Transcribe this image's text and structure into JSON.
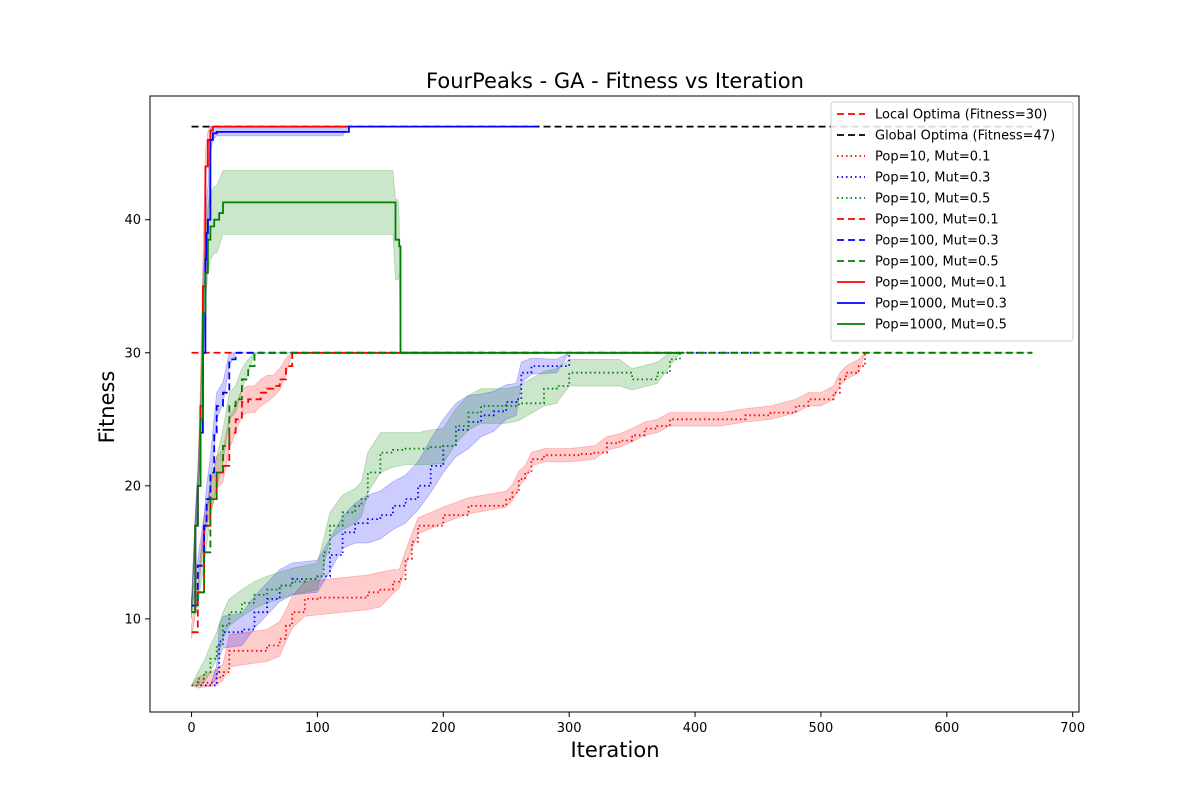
{
  "chart_data": {
    "type": "line",
    "title": "FourPeaks - GA - Fitness vs Iteration",
    "xlabel": "Iteration",
    "ylabel": "Fitness",
    "xlim": [
      -33,
      705
    ],
    "ylim": [
      3,
      49.3
    ],
    "xticks": [
      0,
      100,
      200,
      300,
      400,
      500,
      600,
      700
    ],
    "yticks": [
      10,
      20,
      30,
      40
    ],
    "grid": false,
    "legend_position": "top-right",
    "reference_lines": [
      {
        "name": "Local Optima (Fitness=30)",
        "y": 30,
        "x_range": [
          0,
          668
        ],
        "color": "#ff0000",
        "style": "dashed"
      },
      {
        "name": "Global Optima (Fitness=47)",
        "y": 47,
        "x_range": [
          0,
          668
        ],
        "color": "#000000",
        "style": "dashed"
      }
    ],
    "series": [
      {
        "name": "Pop=10, Mut=0.1",
        "color": "#ff0000",
        "style": "dotted",
        "x": [
          0,
          5,
          20,
          25,
          30,
          60,
          70,
          75,
          80,
          90,
          100,
          140,
          150,
          160,
          165,
          170,
          175,
          180,
          200,
          220,
          250,
          255,
          260,
          265,
          270,
          280,
          290,
          300,
          310,
          320,
          330,
          340,
          350,
          360,
          370,
          380,
          390,
          400,
          420,
          440,
          460,
          480,
          490,
          500,
          510,
          515,
          520,
          530,
          535
        ],
        "y": [
          5,
          5.2,
          5.6,
          6,
          7.6,
          8,
          8.5,
          9.5,
          10.5,
          11.5,
          11.6,
          12,
          12.2,
          12.8,
          13,
          14.5,
          15.8,
          17,
          17.8,
          18.5,
          19,
          19.5,
          20.5,
          21,
          22,
          22.3,
          22.3,
          22.3,
          22.4,
          22.5,
          23.2,
          23.4,
          23.8,
          24.3,
          24.5,
          25,
          25,
          25,
          25,
          25.3,
          25.5,
          26,
          26.5,
          26.5,
          27,
          28,
          28.5,
          29,
          30
        ],
        "band": [
          0,
          0.4,
          0.6,
          0.6,
          1.2,
          1.2,
          1.3,
          1.2,
          1.2,
          1.3,
          1.3,
          1.3,
          1.3,
          0.9,
          0.7,
          0.6,
          0.6,
          0.6,
          0.6,
          0.6,
          0.6,
          0.6,
          0.6,
          0.5,
          0.5,
          0.5,
          0.5,
          0.5,
          0.5,
          0.5,
          0.5,
          0.5,
          0.5,
          0.5,
          0.5,
          0.5,
          0.5,
          0.5,
          0.5,
          0.5,
          0.5,
          0.5,
          0.5,
          0.5,
          0.5,
          0.5,
          0.5,
          0.5,
          0
        ]
      },
      {
        "name": "Pop=10, Mut=0.3",
        "color": "#0000ff",
        "style": "dotted",
        "x": [
          0,
          15,
          20,
          22,
          25,
          40,
          50,
          60,
          70,
          80,
          100,
          110,
          120,
          130,
          140,
          150,
          160,
          170,
          180,
          190,
          200,
          210,
          220,
          230,
          240,
          250,
          258,
          262,
          270,
          290,
          300,
          310,
          330,
          350,
          380,
          400,
          420,
          450
        ],
        "y": [
          5,
          5,
          6,
          8.3,
          9,
          9.2,
          10.5,
          11.5,
          12.5,
          13,
          13.2,
          14.8,
          16.5,
          17.2,
          17.5,
          17.8,
          18.5,
          19,
          20,
          21.5,
          23,
          24.2,
          24.8,
          25.3,
          25.6,
          26.3,
          26.5,
          28.5,
          29,
          29,
          30,
          30,
          30,
          30,
          30,
          30,
          30,
          30
        ],
        "band": [
          0,
          0,
          0.5,
          1.2,
          1.2,
          1.2,
          1.2,
          1.2,
          1.2,
          1.2,
          1.2,
          1.2,
          1.2,
          1.5,
          1.8,
          1.8,
          1.8,
          1.8,
          1.8,
          2,
          2,
          2,
          2,
          1.6,
          1.5,
          1.3,
          1.2,
          0.8,
          0.6,
          0.5,
          0,
          0,
          0,
          0,
          0,
          0,
          0,
          0
        ]
      },
      {
        "name": "Pop=10, Mut=0.5",
        "color": "#008000",
        "style": "dotted",
        "x": [
          0,
          5,
          10,
          15,
          20,
          25,
          30,
          40,
          50,
          60,
          70,
          80,
          90,
          100,
          105,
          110,
          120,
          130,
          135,
          140,
          150,
          160,
          170,
          180,
          190,
          200,
          210,
          220,
          230,
          250,
          260,
          280,
          290,
          300,
          330,
          340,
          350,
          370,
          380,
          388,
          400
        ],
        "y": [
          5,
          5.5,
          6,
          7,
          8,
          9.5,
          10.5,
          11.2,
          11.8,
          12.2,
          12.5,
          12.8,
          13,
          13.2,
          15,
          17,
          18,
          18.5,
          19,
          21,
          22.5,
          22.7,
          22.8,
          22.8,
          22.9,
          23,
          24.5,
          25.5,
          26,
          26,
          26.2,
          27.3,
          27.5,
          28.5,
          28.5,
          28.5,
          28,
          28.5,
          29.5,
          30,
          30
        ],
        "band": [
          0,
          0.5,
          0.8,
          1,
          1,
          1,
          1,
          1,
          1,
          1,
          1,
          1,
          1,
          1,
          1,
          1,
          1.3,
          1.3,
          1.3,
          1.5,
          1.5,
          1.3,
          1.2,
          1.2,
          1.3,
          1.3,
          1.3,
          1.3,
          1.3,
          1.3,
          1.3,
          1.3,
          1.3,
          1,
          1,
          1,
          0.8,
          0.8,
          0.5,
          0,
          0
        ]
      },
      {
        "name": "Pop=100, Mut=0.1",
        "color": "#ff0000",
        "style": "dashed",
        "x": [
          0,
          5,
          10,
          15,
          20,
          25,
          30,
          35,
          40,
          45,
          50,
          55,
          60,
          65,
          70,
          75,
          80,
          150,
          225
        ],
        "y": [
          9,
          12,
          17,
          19,
          21,
          21.5,
          24,
          25,
          26.3,
          26.5,
          26.5,
          27,
          27.3,
          27.5,
          28,
          29,
          30,
          30,
          30
        ],
        "band": [
          0.5,
          0.5,
          0.7,
          1,
          1.2,
          1.2,
          1.2,
          1,
          1,
          1,
          1,
          1,
          1,
          0.8,
          0.8,
          0.6,
          0,
          0,
          0
        ]
      },
      {
        "name": "Pop=100, Mut=0.3",
        "color": "#0000ff",
        "style": "dashed",
        "x": [
          0,
          5,
          10,
          12,
          15,
          18,
          20,
          25,
          30,
          35,
          38,
          40,
          100,
          200,
          275
        ],
        "y": [
          11,
          14,
          17,
          19,
          21,
          24,
          26,
          27,
          29.5,
          30,
          30,
          30,
          30,
          30,
          30
        ],
        "band": [
          0.5,
          0.5,
          0.8,
          1,
          1.2,
          1.2,
          1,
          0.8,
          0.5,
          0,
          0,
          0,
          0,
          0,
          0
        ]
      },
      {
        "name": "Pop=100, Mut=0.5",
        "color": "#008000",
        "style": "dashed",
        "x": [
          0,
          5,
          10,
          15,
          20,
          25,
          30,
          35,
          40,
          45,
          50,
          100,
          200,
          300,
          400,
          500,
          600,
          668
        ],
        "y": [
          11,
          12,
          15,
          19,
          21,
          23,
          26,
          26.5,
          28,
          29,
          30,
          30,
          30,
          30,
          30,
          30,
          30,
          30
        ],
        "band": [
          0.5,
          0.8,
          1,
          1.2,
          1.2,
          1.2,
          1,
          1,
          0.8,
          0.5,
          0,
          0,
          0,
          0,
          0,
          0,
          0,
          0
        ]
      },
      {
        "name": "Pop=1000, Mut=0.1",
        "color": "#ff0000",
        "style": "solid",
        "x": [
          0,
          3,
          5,
          7,
          9,
          11,
          13,
          15,
          17,
          20,
          50,
          100,
          125
        ],
        "y": [
          10.5,
          17,
          20,
          26,
          35,
          44,
          46,
          46.7,
          47,
          47,
          47,
          47,
          47
        ],
        "band": [
          0.5,
          0.8,
          1,
          1.5,
          2,
          1.2,
          0.6,
          0.3,
          0,
          0,
          0,
          0,
          0
        ]
      },
      {
        "name": "Pop=1000, Mut=0.3",
        "color": "#0000ff",
        "style": "solid",
        "x": [
          0,
          3,
          5,
          7,
          9,
          11,
          12,
          13,
          15,
          17,
          20,
          50,
          100,
          120,
          125,
          200,
          275
        ],
        "y": [
          11,
          17,
          20,
          24,
          30,
          37,
          39,
          40,
          46,
          46.5,
          46.6,
          46.6,
          46.6,
          46.6,
          47,
          47,
          47
        ],
        "band": [
          0.5,
          0.8,
          1,
          1.5,
          2,
          2.5,
          2.5,
          2.5,
          1,
          0.5,
          0.3,
          0.3,
          0.3,
          0.3,
          0,
          0,
          0
        ]
      },
      {
        "name": "Pop=1000, Mut=0.5",
        "color": "#008000",
        "style": "solid",
        "x": [
          0,
          3,
          5,
          7,
          9,
          11,
          13,
          15,
          18,
          20,
          22,
          25,
          30,
          80,
          160,
          162,
          164,
          165,
          166,
          170,
          200,
          300,
          388
        ],
        "y": [
          10.5,
          17,
          20,
          25,
          33,
          36,
          38.5,
          39.5,
          40,
          40,
          40.5,
          41.3,
          41.3,
          41.3,
          41.3,
          38.5,
          38.5,
          38,
          30,
          30,
          30,
          30,
          30
        ],
        "band": [
          0.5,
          0.8,
          1,
          1.5,
          2.5,
          2.5,
          2.5,
          2.5,
          2.5,
          2.5,
          2.5,
          2.4,
          2.4,
          2.4,
          2.4,
          3,
          3,
          2,
          0,
          0,
          0,
          0,
          0
        ]
      }
    ]
  }
}
